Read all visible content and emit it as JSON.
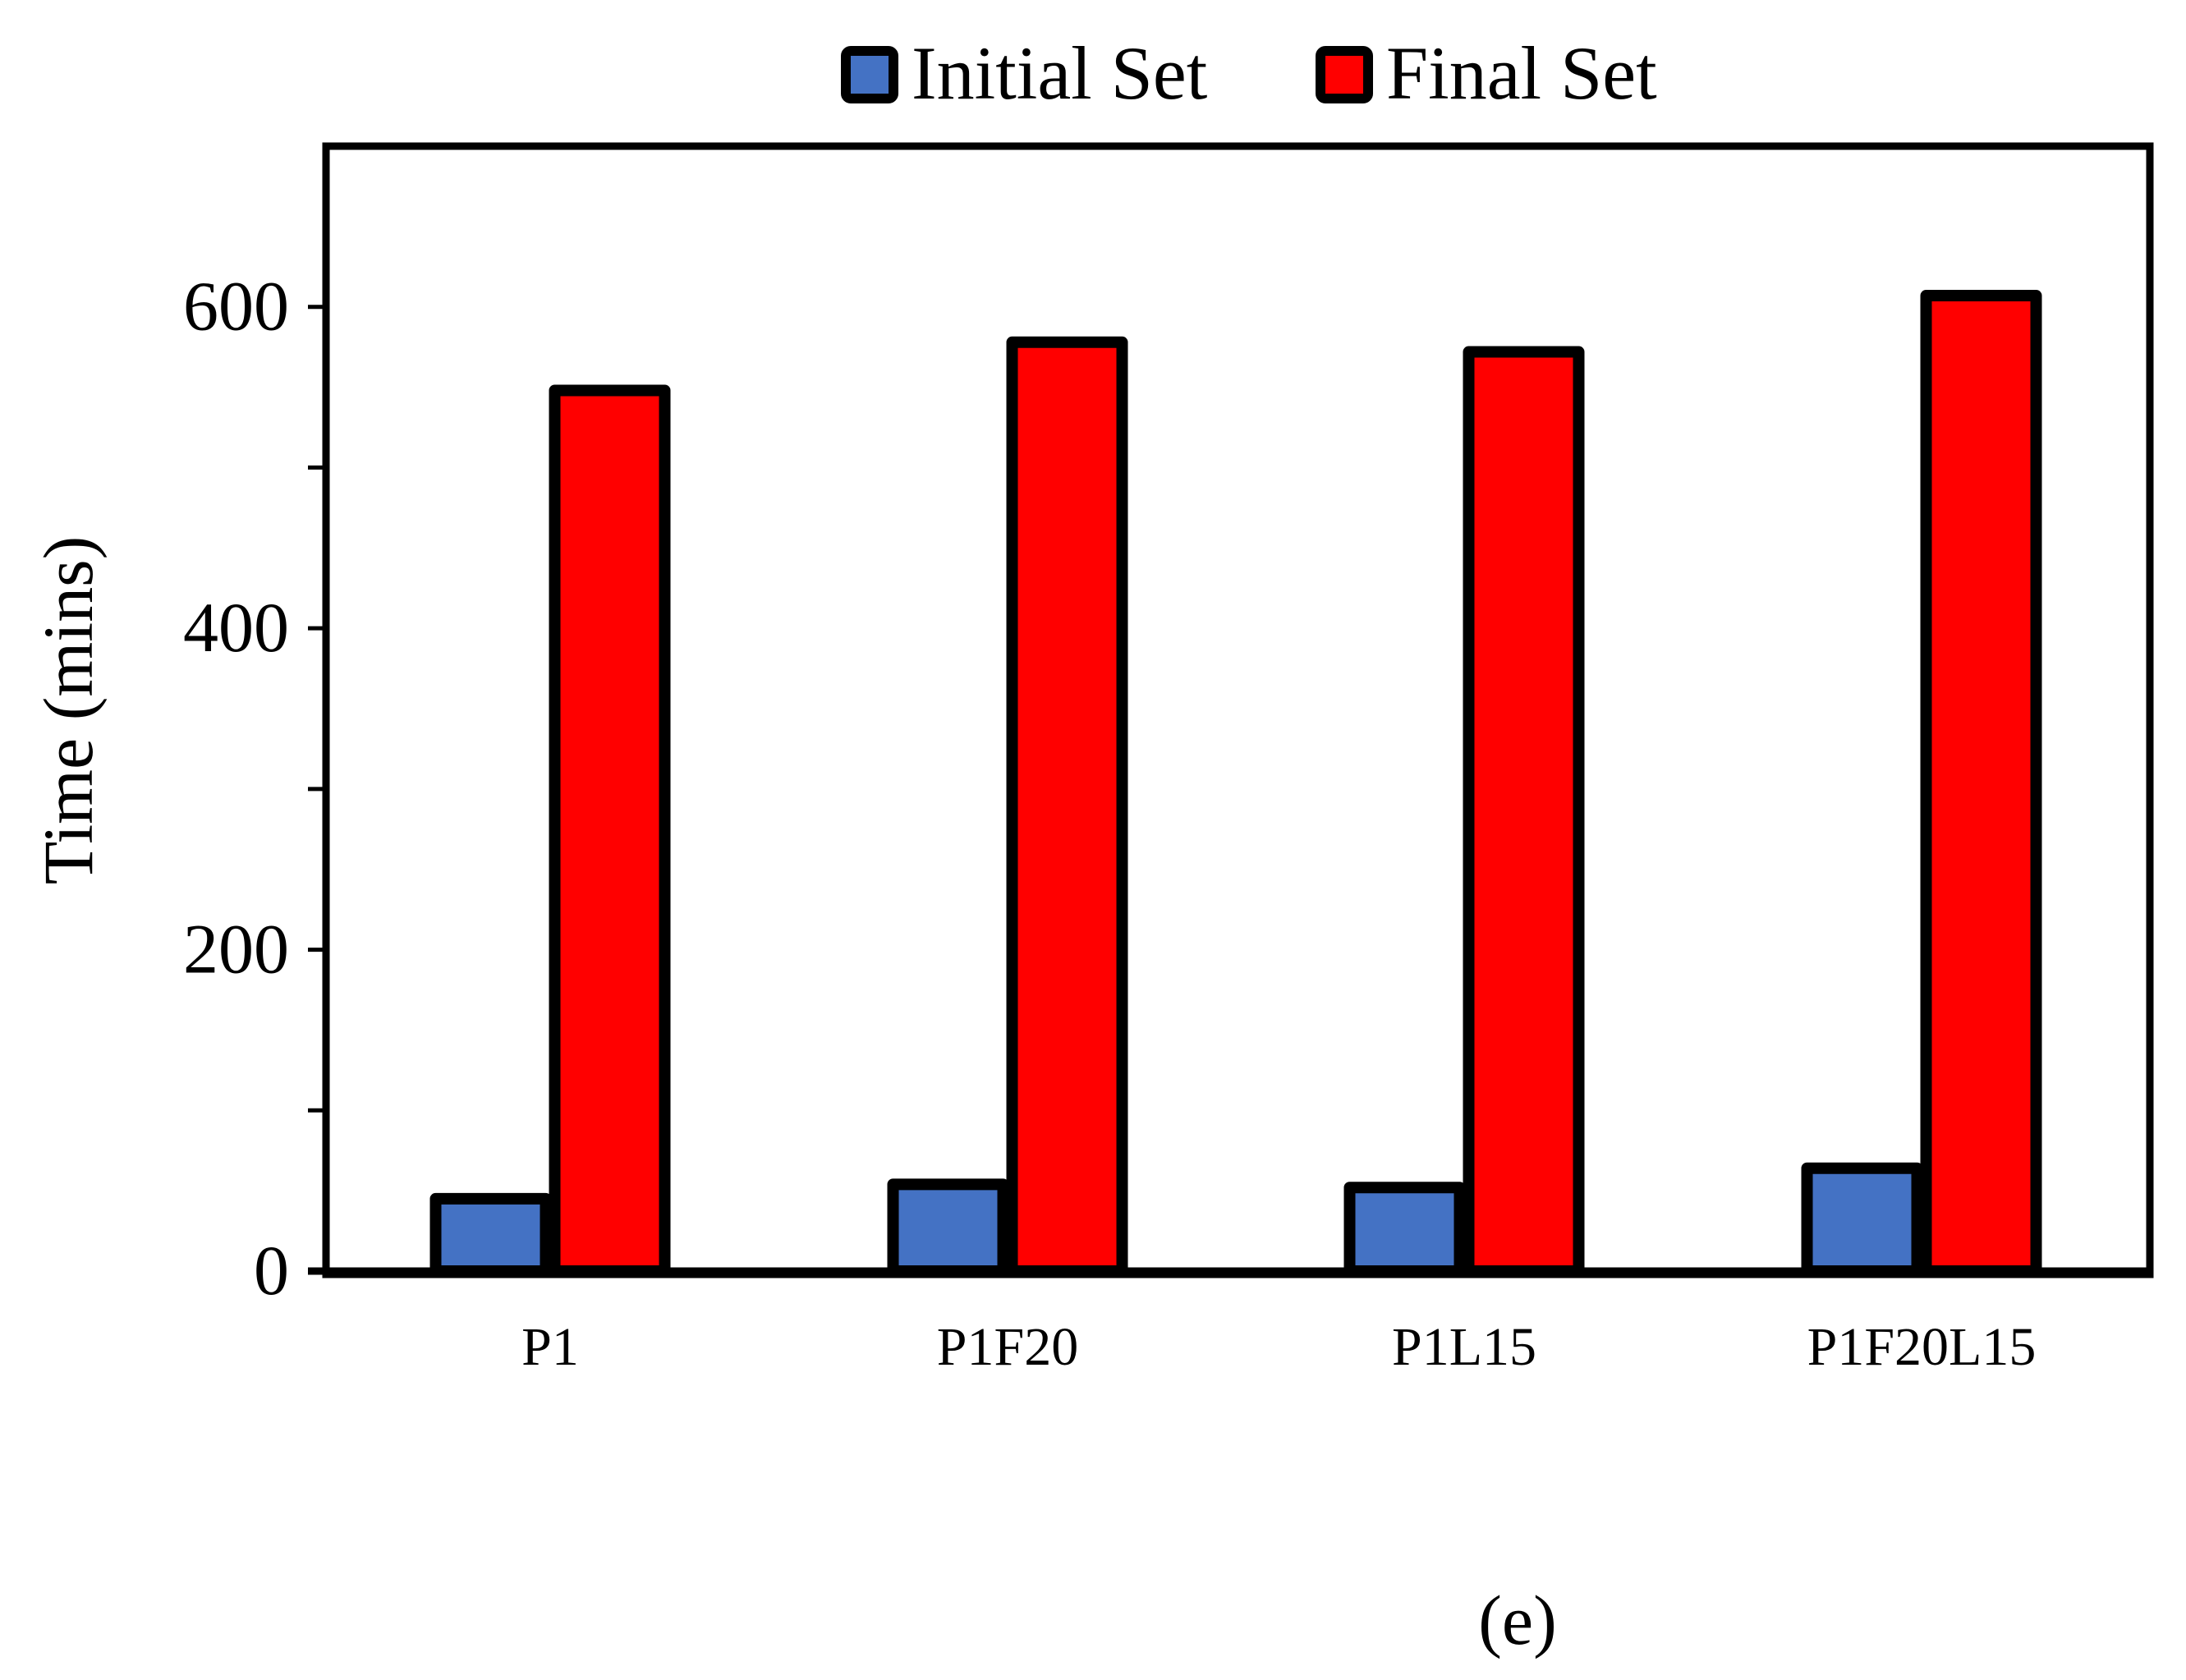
{
  "chart_data": {
    "type": "bar",
    "categories": [
      "P1",
      "P1F20",
      "P1L15",
      "P1F20L15"
    ],
    "series": [
      {
        "name": "Initial Set",
        "values": [
          45,
          54,
          52,
          64
        ],
        "color": "#4472C4"
      },
      {
        "name": "Final Set",
        "values": [
          548,
          578,
          572,
          607
        ],
        "color": "#FF0000"
      }
    ],
    "ylabel": "Time (mins)",
    "xlabel": "",
    "ylim": [
      0,
      700
    ],
    "yticks": [
      0,
      200,
      400,
      600
    ],
    "yticks_minor": [
      100,
      300,
      500
    ],
    "grid": false,
    "legend_position": "top-center",
    "caption": "(e)"
  }
}
